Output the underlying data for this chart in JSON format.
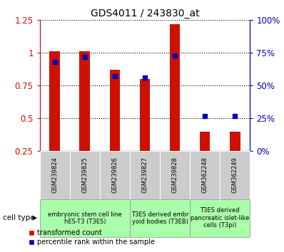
{
  "title": "GDS4011 / 243830_at",
  "samples": [
    "GSM239824",
    "GSM239825",
    "GSM239826",
    "GSM239827",
    "GSM239828",
    "GSM362248",
    "GSM362249"
  ],
  "transformed_count": [
    1.01,
    1.01,
    0.87,
    0.8,
    1.22,
    0.4,
    0.4
  ],
  "percentile_rank_pct": [
    68,
    72,
    57,
    56,
    73,
    27,
    27
  ],
  "ylim_left": [
    0.25,
    1.25
  ],
  "ylim_right": [
    0,
    100
  ],
  "yticks_left": [
    0.25,
    0.5,
    0.75,
    1.0,
    1.25
  ],
  "yticks_right": [
    0,
    25,
    50,
    75,
    100
  ],
  "ytick_labels_left": [
    "0.25",
    "0.5",
    "0.75",
    "1",
    "1.25"
  ],
  "ytick_labels_right": [
    "0%",
    "25%",
    "50%",
    "75%",
    "100%"
  ],
  "bar_color": "#cc1100",
  "dot_color": "#0000bb",
  "background_color": "#ffffff",
  "legend_red_label": "transformed count",
  "legend_blue_label": "percentile rank within the sample",
  "cell_type_label": "cell type",
  "left_axis_color": "#cc1100",
  "right_axis_color": "#0000bb",
  "sample_box_color": "#cccccc",
  "cell_group_color": "#aaffaa",
  "groups": [
    {
      "indices": [
        0,
        1,
        2
      ],
      "label": "embryonic stem cell line\nhES-T3 (T3ES)"
    },
    {
      "indices": [
        3,
        4
      ],
      "label": "T3ES derived embr\nyoid bodies (T3EB)"
    },
    {
      "indices": [
        5,
        6
      ],
      "label": "T3ES derived\npancreatic islet-like\ncells (T3pi)"
    }
  ],
  "bar_width": 0.35,
  "dot_size": 5
}
